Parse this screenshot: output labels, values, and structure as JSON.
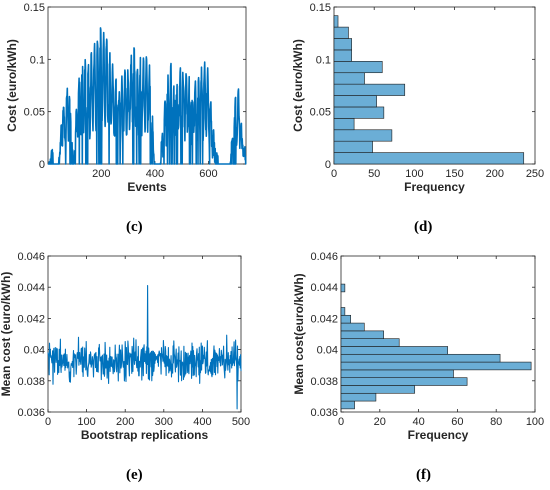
{
  "captions": {
    "c": "(c)",
    "d": "(d)",
    "e": "(e)",
    "f": "(f)"
  },
  "chart_data": [
    {
      "id": "c",
      "type": "line",
      "xlabel": "Events",
      "ylabel": "Cost (euro/kWh)",
      "xlim": [
        1,
        740
      ],
      "ylim": [
        0,
        0.15
      ],
      "xticks": [
        200,
        400,
        600
      ],
      "yticks": [
        0,
        0.05,
        0.1,
        0.15
      ],
      "ytick_labels": [
        "0",
        "0.05",
        "0.1",
        "0.15"
      ],
      "grid": false,
      "color": "#0072BD",
      "series": [
        {
          "x": [
            1,
            740
          ],
          "y_summary": "event-level cost signal, ~740 events; bursts between ~45-700 with peaks up to ~0.13 near event 210, repeated drops to 0, long zero stretches near events 400-420 and 620-700",
          "segments": [
            [
              1,
              0.0
            ],
            [
              15,
              0.01
            ],
            [
              22,
              0.0
            ],
            [
              40,
              0.0
            ],
            [
              48,
              0.03
            ],
            [
              55,
              0.07
            ],
            [
              65,
              0.04
            ],
            [
              75,
              0.09
            ],
            [
              85,
              0.06
            ],
            [
              95,
              0.0
            ],
            [
              110,
              0.07
            ],
            [
              125,
              0.09
            ],
            [
              140,
              0.1
            ],
            [
              155,
              0.09
            ],
            [
              170,
              0.11
            ],
            [
              185,
              0.12
            ],
            [
              205,
              0.13
            ],
            [
              220,
              0.12
            ],
            [
              235,
              0.1
            ],
            [
              250,
              0.08
            ],
            [
              265,
              0.07
            ],
            [
              280,
              0.08
            ],
            [
              300,
              0.09
            ],
            [
              320,
              0.11
            ],
            [
              340,
              0.09
            ],
            [
              360,
              0.1
            ],
            [
              380,
              0.09
            ],
            [
              400,
              0.0
            ],
            [
              420,
              0.0
            ],
            [
              440,
              0.07
            ],
            [
              460,
              0.09
            ],
            [
              480,
              0.08
            ],
            [
              500,
              0.09
            ],
            [
              520,
              0.08
            ],
            [
              540,
              0.07
            ],
            [
              560,
              0.08
            ],
            [
              580,
              0.09
            ],
            [
              600,
              0.09
            ],
            [
              620,
              0.02
            ],
            [
              640,
              0.0
            ],
            [
              660,
              0.0
            ],
            [
              680,
              0.0
            ],
            [
              700,
              0.06
            ],
            [
              715,
              0.07
            ],
            [
              725,
              0.03
            ],
            [
              740,
              0.0
            ]
          ]
        }
      ]
    },
    {
      "id": "d",
      "type": "bar",
      "orientation": "horizontal",
      "xlabel": "Frequency",
      "ylabel": "Cost (euro/kWh)",
      "xlim": [
        0,
        250
      ],
      "ylim": [
        0,
        0.15
      ],
      "xticks": [
        0,
        50,
        100,
        150,
        200,
        250
      ],
      "yticks": [
        0,
        0.05,
        0.1,
        0.15
      ],
      "ytick_labels": [
        "0",
        "0.05",
        "0.1",
        "0.15"
      ],
      "color": "#6BAED6",
      "bin_width": 0.0109,
      "bin_starts": [
        0,
        0.0109,
        0.0218,
        0.0327,
        0.0436,
        0.0545,
        0.0654,
        0.0763,
        0.0872,
        0.0981,
        0.109,
        0.1199,
        0.1308
      ],
      "values": [
        236,
        48,
        72,
        25,
        62,
        53,
        88,
        38,
        60,
        22,
        22,
        18,
        5
      ]
    },
    {
      "id": "e",
      "type": "line",
      "xlabel": "Bootstrap replications",
      "ylabel": "Mean cost (euro/kWh)",
      "xlim": [
        0,
        500
      ],
      "ylim": [
        0.036,
        0.046
      ],
      "xticks": [
        0,
        100,
        200,
        300,
        400,
        500
      ],
      "yticks": [
        0.036,
        0.038,
        0.04,
        0.042,
        0.044,
        0.046
      ],
      "ytick_labels": [
        "0.036",
        "0.038",
        "0.04",
        "0.042",
        "0.044",
        "0.046"
      ],
      "color": "#0072BD",
      "series": [
        {
          "y_summary": "500 bootstrap means fluctuating around 0.0393, mostly within 0.037-0.042; spike to ~0.0441 near replication 258; dips to ~0.0362 near replication 490",
          "mean": 0.0393,
          "sd": 0.0009,
          "highlights": [
            [
              258,
              0.0441
            ],
            [
              490,
              0.0362
            ]
          ]
        }
      ]
    },
    {
      "id": "f",
      "type": "bar",
      "orientation": "horizontal",
      "xlabel": "Frequency",
      "ylabel": "Mean cost(euro/kWh)",
      "xlim": [
        0,
        100
      ],
      "ylim": [
        0.036,
        0.046
      ],
      "xticks": [
        0,
        20,
        40,
        60,
        80,
        100
      ],
      "yticks": [
        0.036,
        0.038,
        0.04,
        0.042,
        0.044,
        0.046
      ],
      "ytick_labels": [
        "0.036",
        "0.038",
        "0.04",
        "0.042",
        "0.044",
        "0.046"
      ],
      "color": "#6BAED6",
      "bin_width": 0.0005,
      "bin_starts": [
        0.0362,
        0.0367,
        0.0372,
        0.0377,
        0.0382,
        0.0387,
        0.0392,
        0.0397,
        0.0402,
        0.0407,
        0.0412,
        0.0417,
        0.0422,
        0.0427,
        0.0432,
        0.0437
      ],
      "values": [
        7,
        18,
        38,
        65,
        58,
        98,
        82,
        55,
        30,
        22,
        12,
        5,
        2,
        0,
        0,
        2
      ]
    }
  ]
}
